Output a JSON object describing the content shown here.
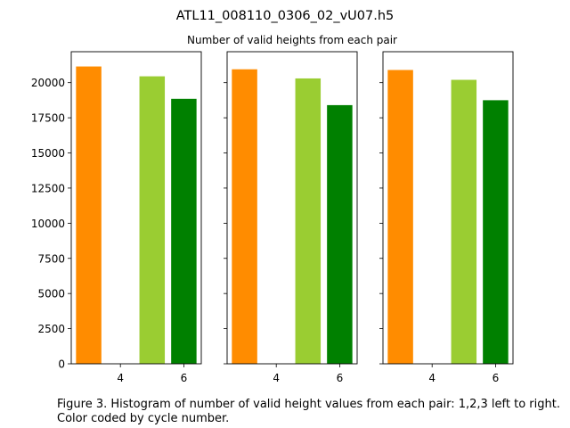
{
  "figure": {
    "suptitle": "ATL11_008110_0306_02_vU07.h5",
    "caption": "Figure 3. Histogram of number of valid height values from each pair: 1,2,3 left to right. Color coded by cycle number."
  },
  "chart_data": [
    {
      "type": "bar",
      "panel": "pair 1",
      "title": "",
      "xlabel": "",
      "ylabel": "",
      "x": [
        3,
        5,
        6
      ],
      "values": [
        21150,
        20450,
        18850
      ],
      "colors": [
        "#ff8c00",
        "#9acd32",
        "#008000"
      ],
      "xticks": [
        4,
        6
      ],
      "xlim": [
        2.45,
        6.55
      ],
      "ylim": [
        0,
        22200
      ],
      "yticks": [
        0,
        2500,
        5000,
        7500,
        10000,
        12500,
        15000,
        17500,
        20000
      ],
      "show_ytick_labels": true
    },
    {
      "type": "bar",
      "panel": "pair 2",
      "title": "Number of valid heights from each pair",
      "xlabel": "",
      "ylabel": "",
      "x": [
        3,
        5,
        6
      ],
      "values": [
        20950,
        20300,
        18400
      ],
      "colors": [
        "#ff8c00",
        "#9acd32",
        "#008000"
      ],
      "xticks": [
        4,
        6
      ],
      "xlim": [
        2.45,
        6.55
      ],
      "ylim": [
        0,
        22200
      ],
      "yticks": [
        0,
        2500,
        5000,
        7500,
        10000,
        12500,
        15000,
        17500,
        20000
      ],
      "show_ytick_labels": false
    },
    {
      "type": "bar",
      "panel": "pair 3",
      "title": "",
      "xlabel": "",
      "ylabel": "",
      "x": [
        3,
        5,
        6
      ],
      "values": [
        20900,
        20200,
        18750
      ],
      "colors": [
        "#ff8c00",
        "#9acd32",
        "#008000"
      ],
      "xticks": [
        4,
        6
      ],
      "xlim": [
        2.45,
        6.55
      ],
      "ylim": [
        0,
        22200
      ],
      "yticks": [
        0,
        2500,
        5000,
        7500,
        10000,
        12500,
        15000,
        17500,
        20000
      ],
      "show_ytick_labels": false
    }
  ]
}
